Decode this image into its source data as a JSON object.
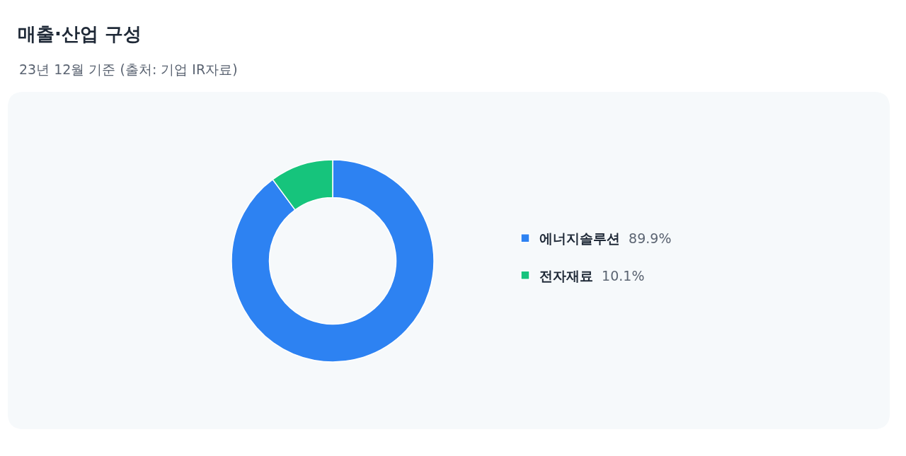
{
  "chart_data": {
    "type": "donut",
    "title": "매출·산업 구성",
    "subtitle": "23년 12월 기준 (출처: 기업 IR자료)",
    "categories": [
      "에너지솔루션",
      "전자재료"
    ],
    "values": [
      89.9,
      10.1
    ],
    "colors": [
      "#2d82f2",
      "#16c47c"
    ],
    "value_labels": [
      "89.9%",
      "10.1%"
    ],
    "legend": "right"
  }
}
